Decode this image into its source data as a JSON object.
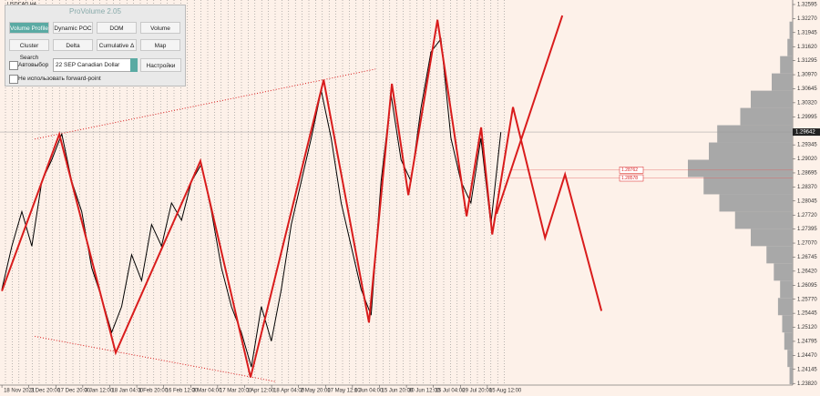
{
  "symbol": "USDCAD,H4",
  "panel": {
    "title": "ProVolume 2.05",
    "buttons": [
      "Volume Profile",
      "Dynamic POC",
      "DOM",
      "Volume",
      "Cluster Search",
      "Delta",
      "Cumulative Δ",
      "Map"
    ],
    "auto_select": "Автовыбор",
    "instrument": "22 SEP Canadian Dollar",
    "settings": "Настройки",
    "forward_point": "Не использовать forward-point"
  },
  "chart_data": {
    "type": "line",
    "xlim": [
      -0.07,
      29.32
    ],
    "ylim": [
      1.23782,
      1.327
    ],
    "xticks": [
      {
        "value": 0,
        "label": "18 Nov 2021"
      },
      {
        "value": 1,
        "label": "3 Dec 20:00"
      },
      {
        "value": 2,
        "label": "17 Dec 20:00"
      },
      {
        "value": 3,
        "label": "3 Jan 12:00"
      },
      {
        "value": 4,
        "label": "18 Jan 04:00"
      },
      {
        "value": 5,
        "label": "1 Feb 20:00"
      },
      {
        "value": 6,
        "label": "16 Feb 12:00"
      },
      {
        "value": 7,
        "label": "3 Mar 04:00"
      },
      {
        "value": 8,
        "label": "17 Mar 20:00"
      },
      {
        "value": 9,
        "label": "1 Apr 12:00"
      },
      {
        "value": 10,
        "label": "18 Apr 04:00"
      },
      {
        "value": 11,
        "label": "2 May 20:00"
      },
      {
        "value": 12,
        "label": "17 May 12:00"
      },
      {
        "value": 13,
        "label": "1 Jun 04:00"
      },
      {
        "value": 14,
        "label": "15 Jun 20:00"
      },
      {
        "value": 15,
        "label": "30 Jun 12:00"
      },
      {
        "value": 16,
        "label": "15 Jul 04:00"
      },
      {
        "value": 17,
        "label": "29 Jul 20:00"
      },
      {
        "value": 18,
        "label": "15 Aug 12:00"
      }
    ],
    "yticks": [
      1.32595,
      {
        "value": 1.3227,
        "label": "1.32270"
      },
      1.31945,
      {
        "value": 1.3162,
        "label": "1.31620"
      },
      1.31295,
      {
        "value": 1.3097,
        "label": "1.30970"
      },
      1.30645,
      {
        "value": 1.3032,
        "label": "1.30320"
      },
      1.29995,
      {
        "value": 1.2967,
        "label": "1.29670"
      },
      1.29345,
      {
        "value": 1.2902,
        "label": "1.29020"
      },
      1.28695,
      {
        "value": 1.2837,
        "label": "1.28370"
      },
      1.28045,
      {
        "value": 1.2772,
        "label": "1.27720"
      },
      1.27395,
      {
        "value": 1.2707,
        "label": "1.27070"
      },
      1.26745,
      {
        "value": 1.2642,
        "label": "1.26420"
      },
      1.26095,
      {
        "value": 1.2577,
        "label": "1.25770"
      },
      1.25445,
      {
        "value": 1.2512,
        "label": "1.25120"
      },
      1.24795,
      {
        "value": 1.2447,
        "label": "1.24470"
      },
      1.24145,
      {
        "value": 1.2382,
        "label": "1.23820"
      }
    ],
    "current_price": 1.29642,
    "levels": [
      1.28762,
      1.28578
    ],
    "series": [
      {
        "name": "price",
        "color": "#000000",
        "width": 1,
        "dash": "none",
        "x": [
          0,
          0.37,
          0.74,
          1.11,
          1.48,
          1.85,
          2.22,
          2.59,
          2.96,
          3.33,
          3.7,
          4.07,
          4.44,
          4.81,
          5.18,
          5.55,
          5.92,
          6.29,
          6.66,
          7.03,
          7.4,
          7.77,
          8.14,
          8.51,
          8.88,
          9.25,
          9.62,
          9.99,
          10.36,
          10.73,
          11.1,
          11.47,
          11.84,
          12.21,
          12.58,
          12.95,
          13.32,
          13.69,
          14.06,
          14.43,
          14.8,
          15.17,
          15.54,
          15.91,
          16.28,
          16.65,
          17.02,
          17.39,
          17.76,
          18.13,
          18.5
        ],
        "values": [
          1.26,
          1.27,
          1.278,
          1.27,
          1.285,
          1.29,
          1.296,
          1.285,
          1.278,
          1.265,
          1.258,
          1.25,
          1.256,
          1.268,
          1.262,
          1.275,
          1.27,
          1.28,
          1.276,
          1.285,
          1.289,
          1.278,
          1.265,
          1.256,
          1.25,
          1.242,
          1.256,
          1.248,
          1.26,
          1.275,
          1.285,
          1.295,
          1.306,
          1.295,
          1.28,
          1.27,
          1.26,
          1.254,
          1.285,
          1.305,
          1.29,
          1.285,
          1.302,
          1.315,
          1.318,
          1.295,
          1.285,
          1.28,
          1.295,
          1.275,
          1.2964
        ]
      },
      {
        "name": "zigzag",
        "color": "#d91c1c",
        "width": 2,
        "dash": "none",
        "x": [
          0,
          2.13,
          4.22,
          7.36,
          9.22,
          11.93,
          13.61,
          14.46,
          15.07,
          16.15,
          17.23,
          17.77,
          18.18,
          18.95,
          20.14,
          20.88,
          22.23
        ],
        "values": [
          1.2596,
          1.2959,
          1.2453,
          1.2897,
          1.2396,
          1.3085,
          1.2523,
          1.3076,
          1.2818,
          1.3224,
          1.2769,
          1.2975,
          1.2727,
          1.3022,
          1.2719,
          1.2866,
          1.255
        ]
      },
      {
        "name": "projection",
        "color": "#d91c1c",
        "width": 2,
        "dash": "none",
        "x": [
          18.34,
          20.78
        ],
        "values": [
          1.2775,
          1.3234
        ]
      },
      {
        "name": "upper-trend",
        "color": "#d91c1c",
        "width": 1,
        "dash": "1 2",
        "x": [
          1.22,
          13.85
        ],
        "values": [
          1.2948,
          1.311
        ]
      },
      {
        "name": "lower-trend",
        "color": "#d91c1c",
        "width": 1,
        "dash": "1 2",
        "x": [
          1.22,
          10.17
        ],
        "values": [
          1.2491,
          1.2386
        ]
      }
    ],
    "profile": {
      "color": "#a8a8a8",
      "max": 100,
      "levels": [
        1.24,
        1.244,
        1.248,
        1.252,
        1.256,
        1.26,
        1.264,
        1.268,
        1.272,
        1.276,
        1.28,
        1.284,
        1.288,
        1.292,
        1.296,
        1.3,
        1.304,
        1.308,
        1.312,
        1.316,
        1.32
      ],
      "volumes": [
        3,
        5,
        8,
        10,
        14,
        12,
        18,
        25,
        40,
        55,
        70,
        85,
        100,
        80,
        72,
        50,
        40,
        20,
        12,
        5,
        3
      ]
    }
  }
}
